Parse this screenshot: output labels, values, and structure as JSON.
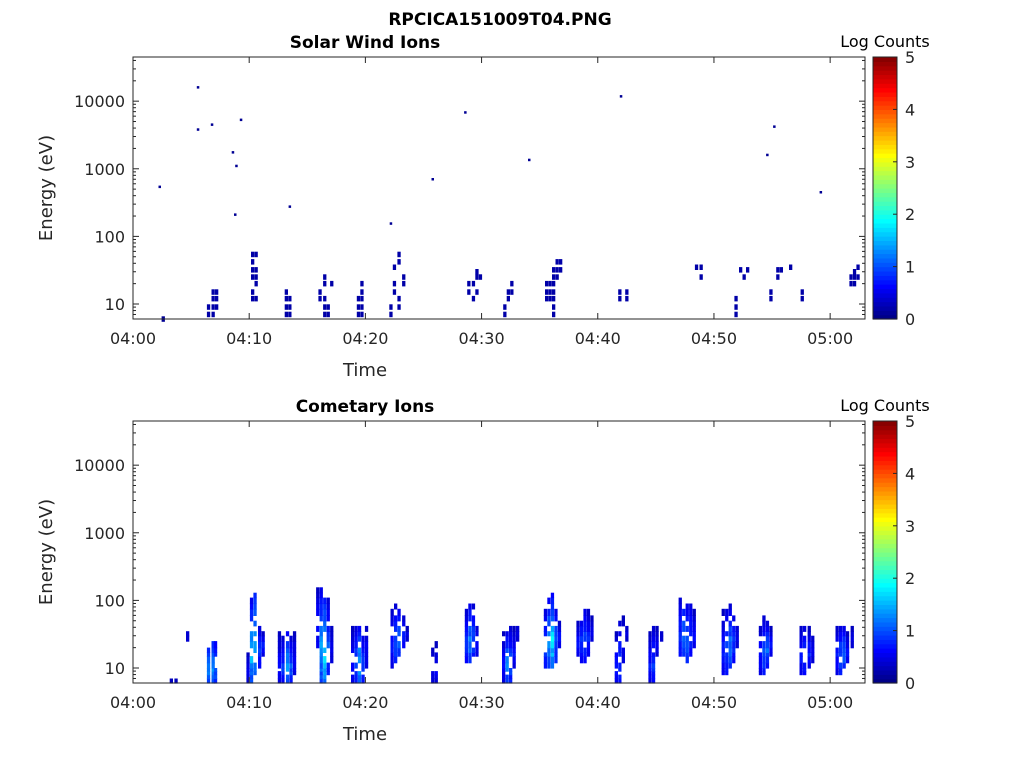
{
  "figure": {
    "title": "RPCICA151009T04.PNG"
  },
  "colors": {
    "axis": "#262626",
    "background": "#ffffff"
  },
  "chart_data": [
    {
      "type": "heatmap",
      "title": "Solar Wind Ions",
      "xlabel": "Time",
      "ylabel": "Energy (eV)",
      "xticks": [
        "04:00",
        "04:10",
        "04:20",
        "04:30",
        "04:40",
        "04:50",
        "05:00"
      ],
      "xlim_minutes": [
        0,
        63
      ],
      "yscale": "log",
      "ylim": [
        6,
        45000
      ],
      "yticks": [
        10,
        100,
        1000,
        10000
      ],
      "ytick_labels": [
        "10",
        "100",
        "1000",
        "10000"
      ],
      "colorbar": {
        "label": "Log Counts",
        "min": 0,
        "max": 5,
        "ticks": [
          "0",
          "1",
          "2",
          "3",
          "4",
          "5"
        ],
        "colormap": "jet"
      },
      "cells": [
        [
          2.3,
          540,
          0.1
        ],
        [
          2.6,
          6,
          0.1
        ],
        [
          5.6,
          16000,
          0.1
        ],
        [
          5.6,
          3800,
          0.1
        ],
        [
          6.8,
          4500,
          0.1
        ],
        [
          6.5,
          7,
          0.2
        ],
        [
          6.5,
          9,
          0.2
        ],
        [
          6.9,
          7,
          0.2
        ],
        [
          6.9,
          9,
          0.2
        ],
        [
          6.9,
          12,
          0.2
        ],
        [
          6.9,
          15,
          0.2
        ],
        [
          7.2,
          9,
          0.2
        ],
        [
          7.2,
          12,
          0.2
        ],
        [
          7.2,
          15,
          0.2
        ],
        [
          8.6,
          1750,
          0.1
        ],
        [
          8.8,
          210,
          0.1
        ],
        [
          8.9,
          1100,
          0.1
        ],
        [
          9.3,
          5300,
          0.1
        ],
        [
          10.3,
          12,
          0.2
        ],
        [
          10.3,
          15,
          0.2
        ],
        [
          10.3,
          25,
          0.2
        ],
        [
          10.3,
          32,
          0.2
        ],
        [
          10.3,
          42,
          0.2
        ],
        [
          10.3,
          54,
          0.2
        ],
        [
          10.6,
          12,
          0.2
        ],
        [
          10.6,
          20,
          0.2
        ],
        [
          10.6,
          25,
          0.2
        ],
        [
          10.6,
          32,
          0.2
        ],
        [
          10.6,
          54,
          0.2
        ],
        [
          13.2,
          7,
          0.2
        ],
        [
          13.2,
          9,
          0.2
        ],
        [
          13.2,
          12,
          0.2
        ],
        [
          13.2,
          15,
          0.2
        ],
        [
          13.5,
          7,
          0.2
        ],
        [
          13.5,
          9,
          0.2
        ],
        [
          13.5,
          12,
          0.2
        ],
        [
          13.5,
          275,
          0.1
        ],
        [
          16.1,
          12,
          0.2
        ],
        [
          16.1,
          15,
          0.2
        ],
        [
          16.5,
          7,
          0.2
        ],
        [
          16.5,
          9,
          0.2
        ],
        [
          16.5,
          12,
          0.2
        ],
        [
          16.5,
          20,
          0.2
        ],
        [
          16.5,
          25,
          0.2
        ],
        [
          16.8,
          7,
          0.2
        ],
        [
          16.8,
          9,
          0.2
        ],
        [
          17.1,
          20,
          0.2
        ],
        [
          19.4,
          7,
          0.2
        ],
        [
          19.4,
          9,
          0.2
        ],
        [
          19.4,
          12,
          0.2
        ],
        [
          19.7,
          7,
          0.2
        ],
        [
          19.7,
          9,
          0.2
        ],
        [
          19.7,
          12,
          0.2
        ],
        [
          19.7,
          15,
          0.2
        ],
        [
          19.7,
          20,
          0.2
        ],
        [
          22.2,
          7,
          0.2
        ],
        [
          22.2,
          9,
          0.2
        ],
        [
          22.2,
          155,
          0.1
        ],
        [
          22.5,
          15,
          0.2
        ],
        [
          22.5,
          20,
          0.2
        ],
        [
          22.5,
          35,
          0.2
        ],
        [
          22.9,
          9,
          0.2
        ],
        [
          22.9,
          12,
          0.2
        ],
        [
          22.9,
          42,
          0.2
        ],
        [
          22.9,
          54,
          0.2
        ],
        [
          23.3,
          20,
          0.2
        ],
        [
          23.3,
          25,
          0.2
        ],
        [
          25.8,
          700,
          0.1
        ],
        [
          28.6,
          6800,
          0.1
        ],
        [
          28.9,
          15,
          0.2
        ],
        [
          28.9,
          20,
          0.2
        ],
        [
          29.3,
          12,
          0.2
        ],
        [
          29.3,
          20,
          0.2
        ],
        [
          29.6,
          15,
          0.2
        ],
        [
          29.6,
          25,
          0.2
        ],
        [
          29.6,
          30,
          0.2
        ],
        [
          29.9,
          25,
          0.2
        ],
        [
          32.0,
          7,
          0.2
        ],
        [
          32.0,
          9,
          0.2
        ],
        [
          32.3,
          12,
          0.2
        ],
        [
          32.3,
          15,
          0.2
        ],
        [
          32.6,
          15,
          0.2
        ],
        [
          32.6,
          20,
          0.2
        ],
        [
          34.1,
          1350,
          0.1
        ],
        [
          35.6,
          12,
          0.2
        ],
        [
          35.6,
          15,
          0.2
        ],
        [
          35.6,
          20,
          0.2
        ],
        [
          35.9,
          12,
          0.2
        ],
        [
          35.9,
          15,
          0.2
        ],
        [
          35.9,
          20,
          0.2
        ],
        [
          36.2,
          7,
          0.2
        ],
        [
          36.2,
          9,
          0.2
        ],
        [
          36.2,
          12,
          0.2
        ],
        [
          36.2,
          15,
          0.2
        ],
        [
          36.2,
          20,
          0.2
        ],
        [
          36.2,
          25,
          0.2
        ],
        [
          36.2,
          32,
          0.2
        ],
        [
          36.5,
          25,
          0.2
        ],
        [
          36.5,
          32,
          0.2
        ],
        [
          36.5,
          42,
          0.2
        ],
        [
          36.8,
          32,
          0.2
        ],
        [
          36.8,
          42,
          0.2
        ],
        [
          41.9,
          12,
          0.2
        ],
        [
          41.9,
          15,
          0.2
        ],
        [
          42.0,
          11800,
          0.1
        ],
        [
          42.5,
          12,
          0.2
        ],
        [
          42.5,
          15,
          0.2
        ],
        [
          48.5,
          35,
          0.2
        ],
        [
          48.9,
          25,
          0.2
        ],
        [
          48.9,
          35,
          0.2
        ],
        [
          51.9,
          7,
          0.2
        ],
        [
          51.9,
          9,
          0.2
        ],
        [
          51.9,
          12,
          0.2
        ],
        [
          52.3,
          32,
          0.2
        ],
        [
          52.6,
          25,
          0.2
        ],
        [
          52.9,
          32,
          0.2
        ],
        [
          54.6,
          1600,
          0.1
        ],
        [
          54.9,
          12,
          0.2
        ],
        [
          54.9,
          15,
          0.2
        ],
        [
          55.2,
          4200,
          0.1
        ],
        [
          55.5,
          25,
          0.2
        ],
        [
          55.5,
          32,
          0.2
        ],
        [
          55.8,
          32,
          0.2
        ],
        [
          56.6,
          35,
          0.2
        ],
        [
          57.6,
          12,
          0.2
        ],
        [
          57.6,
          15,
          0.2
        ],
        [
          59.2,
          450,
          0.1
        ],
        [
          61.8,
          20,
          0.2
        ],
        [
          61.8,
          25,
          0.2
        ],
        [
          62.1,
          20,
          0.2
        ],
        [
          62.1,
          25,
          0.2
        ],
        [
          62.1,
          30,
          0.2
        ],
        [
          62.4,
          25,
          0.2
        ],
        [
          62.4,
          35,
          0.2
        ]
      ]
    },
    {
      "type": "heatmap",
      "title": "Cometary Ions",
      "xlabel": "Time",
      "ylabel": "Energy (eV)",
      "xticks": [
        "04:00",
        "04:10",
        "04:20",
        "04:30",
        "04:40",
        "04:50",
        "05:00"
      ],
      "xlim_minutes": [
        0,
        63
      ],
      "yscale": "log",
      "ylim": [
        6,
        45000
      ],
      "yticks": [
        10,
        100,
        1000,
        10000
      ],
      "ytick_labels": [
        "10",
        "100",
        "1000",
        "10000"
      ],
      "colorbar": {
        "label": "Log Counts",
        "min": 0,
        "max": 5,
        "ticks": [
          "0",
          "1",
          "2",
          "3",
          "4",
          "5"
        ],
        "colormap": "jet"
      },
      "columns": [
        [
          3.3,
          6,
          6,
          0.3,
          0.3
        ],
        [
          3.7,
          6,
          6,
          0.3,
          0.3
        ],
        [
          4.7,
          25,
          42,
          0.4,
          0.4
        ],
        [
          6.5,
          6,
          20,
          0.7,
          1.4
        ],
        [
          6.9,
          6,
          20,
          0.8,
          1.5
        ],
        [
          7.1,
          6,
          20,
          0.6,
          1.2
        ],
        [
          9.9,
          6,
          15,
          0.3,
          0.6
        ],
        [
          10.2,
          6,
          90,
          0.5,
          1.8
        ],
        [
          10.5,
          8,
          110,
          0.8,
          1.5
        ],
        [
          10.9,
          10,
          40,
          0.4,
          1.0
        ],
        [
          11.2,
          15,
          32,
          0.3,
          0.8
        ],
        [
          12.6,
          6,
          30,
          0.3,
          0.7
        ],
        [
          12.9,
          6,
          25,
          0.4,
          1.0
        ],
        [
          13.3,
          6,
          30,
          0.6,
          1.6
        ],
        [
          13.6,
          6,
          25,
          0.4,
          1.2
        ],
        [
          13.9,
          8,
          30,
          0.3,
          0.7
        ],
        [
          15.9,
          20,
          130,
          0.3,
          0.9
        ],
        [
          16.2,
          6,
          130,
          0.5,
          1.6
        ],
        [
          16.5,
          6,
          110,
          0.6,
          2.0
        ],
        [
          16.8,
          8,
          90,
          0.4,
          1.2
        ],
        [
          17.1,
          12,
          40,
          0.3,
          0.6
        ],
        [
          18.9,
          6,
          35,
          0.3,
          0.8
        ],
        [
          19.2,
          6,
          40,
          0.4,
          1.2
        ],
        [
          19.5,
          6,
          35,
          0.6,
          1.8
        ],
        [
          19.8,
          6,
          30,
          0.4,
          1.1
        ],
        [
          20.1,
          10,
          40,
          0.3,
          0.7
        ],
        [
          22.3,
          10,
          75,
          0.3,
          0.8
        ],
        [
          22.6,
          12,
          75,
          0.4,
          1.2
        ],
        [
          22.9,
          15,
          65,
          0.5,
          1.3
        ],
        [
          23.3,
          20,
          50,
          0.4,
          1.0
        ],
        [
          23.6,
          25,
          35,
          0.3,
          0.6
        ],
        [
          25.8,
          6,
          20,
          0.3,
          0.6
        ],
        [
          26.1,
          6,
          20,
          0.3,
          0.7
        ],
        [
          28.7,
          12,
          60,
          0.4,
          1.0
        ],
        [
          29.0,
          12,
          80,
          0.5,
          1.4
        ],
        [
          29.3,
          15,
          75,
          0.4,
          1.2
        ],
        [
          29.6,
          15,
          45,
          0.3,
          0.8
        ],
        [
          31.9,
          6,
          30,
          0.3,
          0.8
        ],
        [
          32.2,
          6,
          30,
          0.5,
          1.5
        ],
        [
          32.5,
          6,
          35,
          0.4,
          1.2
        ],
        [
          32.8,
          10,
          35,
          0.3,
          0.8
        ],
        [
          33.1,
          25,
          40,
          0.3,
          0.6
        ],
        [
          35.5,
          10,
          70,
          0.4,
          1.1
        ],
        [
          35.8,
          10,
          100,
          0.5,
          1.6
        ],
        [
          36.1,
          10,
          110,
          0.6,
          2.0
        ],
        [
          36.4,
          12,
          75,
          0.4,
          1.3
        ],
        [
          36.7,
          20,
          45,
          0.3,
          0.8
        ],
        [
          38.3,
          15,
          45,
          0.3,
          0.8
        ],
        [
          38.6,
          12,
          60,
          0.4,
          1.0
        ],
        [
          38.9,
          12,
          75,
          0.4,
          1.1
        ],
        [
          39.2,
          15,
          65,
          0.3,
          0.9
        ],
        [
          39.5,
          25,
          50,
          0.3,
          0.6
        ],
        [
          41.6,
          6,
          30,
          0.3,
          0.8
        ],
        [
          41.9,
          6,
          45,
          0.4,
          1.0
        ],
        [
          42.2,
          12,
          50,
          0.3,
          0.7
        ],
        [
          42.5,
          25,
          40,
          0.3,
          0.5
        ],
        [
          44.5,
          6,
          30,
          0.3,
          0.8
        ],
        [
          44.8,
          6,
          35,
          0.4,
          1.0
        ],
        [
          45.1,
          15,
          35,
          0.3,
          0.7
        ],
        [
          45.5,
          25,
          35,
          0.3,
          0.5
        ],
        [
          47.1,
          15,
          90,
          0.4,
          1.0
        ],
        [
          47.4,
          15,
          90,
          0.5,
          1.3
        ],
        [
          47.7,
          12,
          75,
          0.5,
          1.2
        ],
        [
          48.0,
          15,
          85,
          0.4,
          1.0
        ],
        [
          48.3,
          20,
          60,
          0.3,
          0.8
        ],
        [
          50.8,
          8,
          60,
          0.3,
          0.9
        ],
        [
          51.1,
          8,
          70,
          0.4,
          1.1
        ],
        [
          51.4,
          10,
          75,
          0.4,
          1.4
        ],
        [
          51.7,
          12,
          60,
          0.4,
          1.0
        ],
        [
          52.0,
          20,
          45,
          0.3,
          0.6
        ],
        [
          54.0,
          8,
          40,
          0.3,
          0.8
        ],
        [
          54.3,
          8,
          50,
          0.4,
          1.2
        ],
        [
          54.6,
          10,
          45,
          0.4,
          1.3
        ],
        [
          54.9,
          15,
          35,
          0.3,
          0.8
        ],
        [
          57.5,
          8,
          40,
          0.3,
          0.8
        ],
        [
          57.8,
          8,
          40,
          0.4,
          1.0
        ],
        [
          58.2,
          10,
          35,
          0.3,
          0.9
        ],
        [
          58.5,
          12,
          30,
          0.3,
          0.6
        ],
        [
          60.6,
          8,
          40,
          0.3,
          0.8
        ],
        [
          60.9,
          8,
          40,
          0.4,
          1.2
        ],
        [
          61.2,
          10,
          35,
          0.5,
          1.4
        ],
        [
          61.5,
          12,
          30,
          0.3,
          0.8
        ],
        [
          61.9,
          20,
          35,
          0.3,
          0.6
        ]
      ]
    }
  ]
}
